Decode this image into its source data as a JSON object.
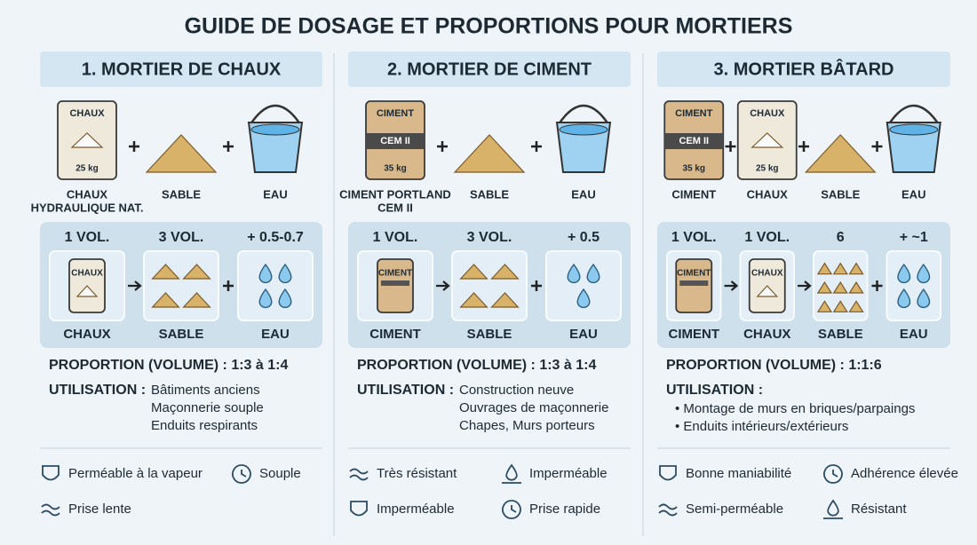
{
  "title": "GUIDE DE DOSAGE ET PROPORTIONS POUR MORTIERS",
  "columns": [
    {
      "heading": "1. MORTIER DE CHAUX",
      "ingredients": [
        {
          "bag": {
            "color": "#efe9dc",
            "text": [
              "CHAUX",
              "25 kg"
            ]
          },
          "label": [
            "CHAUX",
            "HYDRAULIQUE NAT."
          ]
        },
        {
          "label": [
            "SABLE"
          ]
        },
        {
          "label": [
            "EAU"
          ]
        }
      ],
      "ratio": [
        {
          "qty": "1 VOL.",
          "bag": {
            "color": "#efe9dc",
            "text": [
              "CHAUX"
            ]
          },
          "label": "CHAUX"
        },
        {
          "qty": "3 VOL.",
          "label": "SABLE"
        },
        {
          "qty": "+ 0.5-0.7",
          "label": "EAU"
        }
      ],
      "proportion": "PROPORTION (VOLUME) : 1:3 à 1:4",
      "usage_title": "UTILISATION :",
      "usage": [
        "Bâtiments anciens",
        "Maçonnerie souple",
        "Enduits respirants"
      ],
      "features": [
        "Perméable à la vapeur",
        "Souple",
        "Prise lente"
      ]
    },
    {
      "heading": "2. MORTIER DE CIMENT",
      "ingredients": [
        {
          "bag": {
            "color": "#d9b98c",
            "text": [
              "CIMENT",
              "CEM II",
              "35 kg"
            ]
          },
          "label": [
            "CIMENT PORTLAND",
            "CEM II"
          ]
        },
        {
          "label": [
            "SABLE"
          ]
        },
        {
          "label": [
            "EAU"
          ]
        }
      ],
      "ratio": [
        {
          "qty": "1 VOL.",
          "bag": {
            "color": "#d9b98c",
            "text": [
              "CIMENT"
            ]
          },
          "label": "CIMENT"
        },
        {
          "qty": "3 VOL.",
          "label": "SABLE"
        },
        {
          "qty": "+ 0.5",
          "label": "EAU"
        }
      ],
      "proportion": "PROPORTION (VOLUME) : 1:3 à 1:4",
      "usage_title": "UTILISATION :",
      "usage": [
        "Construction neuve",
        "Ouvrages de maçonnerie",
        "Chapes, Murs porteurs"
      ],
      "features": [
        "Très résistant",
        "Imperméable",
        "Imperméable",
        "Prise rapide"
      ]
    },
    {
      "heading": "3. MORTIER BÂTARD",
      "ingredients": [
        {
          "bag": {
            "color": "#d9b98c",
            "text": [
              "CIMENT",
              "CEM II",
              "35 kg"
            ]
          },
          "label": [
            "CIMENT"
          ]
        },
        {
          "bag": {
            "color": "#efe9dc",
            "text": [
              "CHAUX",
              "25 kg"
            ]
          },
          "label": [
            "CHAUX"
          ]
        },
        {
          "label": [
            "SABLE"
          ]
        },
        {
          "label": [
            "EAU"
          ]
        }
      ],
      "ratio": [
        {
          "qty": "1 VOL.",
          "bag": {
            "color": "#d9b98c",
            "text": [
              "CIMENT"
            ]
          },
          "label": "CIMENT"
        },
        {
          "qty": "1 VOL.",
          "bag": {
            "color": "#efe9dc",
            "text": [
              "CHAUX"
            ]
          },
          "label": "CHAUX"
        },
        {
          "qty": "6",
          "label": "SABLE"
        },
        {
          "qty": "+ ~1",
          "label": "EAU"
        }
      ],
      "proportion": "PROPORTION (VOLUME) : 1:1:6",
      "usage_title": "UTILISATION :",
      "usage": [
        "• Montage de murs en briques/parpaings",
        "• Enduits intérieurs/extérieurs"
      ],
      "features": [
        "Bonne maniabilité",
        "Adhérence élevée",
        "Semi-perméable",
        "Résistant"
      ]
    }
  ]
}
